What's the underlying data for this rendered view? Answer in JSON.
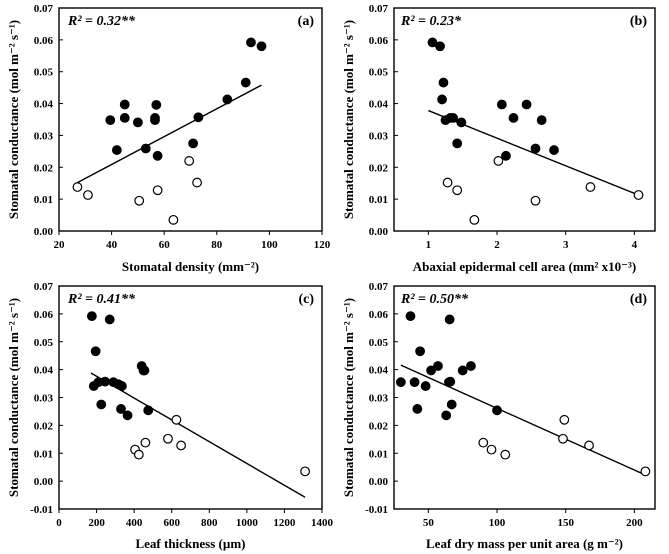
{
  "chart_data": [
    {
      "type": "scatter",
      "panel_label": "(a)",
      "annotation": "R² = 0.32**",
      "xlabel": "Stomatal density (mm⁻²)",
      "ylabel": "Stomatal conductance (mol m⁻² s⁻¹)",
      "xlim": [
        20,
        120
      ],
      "ylim": [
        0.0,
        0.07
      ],
      "xticks": [
        "20",
        "40",
        "60",
        "80",
        "100",
        "120"
      ],
      "yticks": [
        "0.00",
        "0.01",
        "0.02",
        "0.03",
        "0.04",
        "0.05",
        "0.06",
        "0.07"
      ],
      "series": [
        {
          "marker": "filled",
          "points": [
            [
              39.5,
              0.0348
            ],
            [
              45,
              0.0355
            ],
            [
              45,
              0.0397
            ],
            [
              42,
              0.0254
            ],
            [
              50,
              0.0341
            ],
            [
              53,
              0.0259
            ],
            [
              57,
              0.0396
            ],
            [
              56.5,
              0.0355
            ],
            [
              56.5,
              0.0348
            ],
            [
              57.5,
              0.0236
            ],
            [
              71,
              0.0275
            ],
            [
              73,
              0.0357
            ],
            [
              84,
              0.0413
            ],
            [
              91,
              0.0466
            ],
            [
              93,
              0.0592
            ],
            [
              97,
              0.058
            ]
          ]
        },
        {
          "marker": "open",
          "points": [
            [
              27,
              0.0138
            ],
            [
              31,
              0.0113
            ],
            [
              50.5,
              0.0095
            ],
            [
              57.5,
              0.0128
            ],
            [
              63.5,
              0.0035
            ],
            [
              69.5,
              0.022
            ],
            [
              72.5,
              0.0152
            ]
          ]
        }
      ],
      "trend_line": {
        "x": [
          27,
          97
        ],
        "y": [
          0.0152,
          0.0458
        ]
      },
      "colors": {
        "filled": "#000000",
        "open": "#ffffff",
        "line": "#000000"
      }
    },
    {
      "type": "scatter",
      "panel_label": "(b)",
      "annotation": "R² = 0.23*",
      "xlabel": "Abaxial epidermal cell area (mm² x10⁻³)",
      "ylabel": "Stomatal conductance (mol m⁻² s⁻¹)",
      "xlim": [
        0.5,
        4.3
      ],
      "ylim": [
        0.0,
        0.07
      ],
      "xticks": [
        "1",
        "2",
        "3",
        "4"
      ],
      "yticks": [
        "0.00",
        "0.01",
        "0.02",
        "0.03",
        "0.04",
        "0.05",
        "0.06",
        "0.07"
      ],
      "series": [
        {
          "marker": "filled",
          "points": [
            [
              1.06,
              0.0592
            ],
            [
              1.17,
              0.058
            ],
            [
              1.22,
              0.0466
            ],
            [
              1.2,
              0.0413
            ],
            [
              1.25,
              0.0348
            ],
            [
              1.32,
              0.0355
            ],
            [
              1.36,
              0.0355
            ],
            [
              1.42,
              0.0275
            ],
            [
              1.48,
              0.0341
            ],
            [
              2.07,
              0.0397
            ],
            [
              2.13,
              0.0236
            ],
            [
              2.24,
              0.0355
            ],
            [
              2.43,
              0.0397
            ],
            [
              2.56,
              0.0259
            ],
            [
              2.65,
              0.0348
            ],
            [
              2.83,
              0.0254
            ]
          ]
        },
        {
          "marker": "open",
          "points": [
            [
              1.28,
              0.0152
            ],
            [
              1.42,
              0.0128
            ],
            [
              1.67,
              0.0035
            ],
            [
              2.02,
              0.022
            ],
            [
              2.56,
              0.0095
            ],
            [
              3.36,
              0.0138
            ],
            [
              4.06,
              0.0113
            ]
          ]
        }
      ],
      "trend_line": {
        "x": [
          1.0,
          4.06
        ],
        "y": [
          0.0378,
          0.0113
        ]
      },
      "colors": {
        "filled": "#000000",
        "open": "#ffffff",
        "line": "#000000"
      }
    },
    {
      "type": "scatter",
      "panel_label": "(c)",
      "annotation": "R² = 0.41**",
      "xlabel": "Leaf thickness (µm)",
      "ylabel": "Stomatal conductance (mol m⁻² s⁻¹)",
      "xlim": [
        0,
        1400
      ],
      "ylim": [
        -0.01,
        0.07
      ],
      "xticks": [
        "0",
        "200",
        "400",
        "600",
        "800",
        "1000",
        "1200",
        "1400"
      ],
      "yticks": [
        "-0.01",
        "0.00",
        "0.01",
        "0.02",
        "0.03",
        "0.04",
        "0.05",
        "0.06",
        "0.07"
      ],
      "series": [
        {
          "marker": "filled",
          "points": [
            [
              175,
              0.0592
            ],
            [
              270,
              0.058
            ],
            [
              195,
              0.0466
            ],
            [
              210,
              0.0355
            ],
            [
              245,
              0.0357
            ],
            [
              185,
              0.0341
            ],
            [
              225,
              0.0275
            ],
            [
              290,
              0.0355
            ],
            [
              315,
              0.0348
            ],
            [
              335,
              0.0341
            ],
            [
              330,
              0.0259
            ],
            [
              365,
              0.0236
            ],
            [
              440,
              0.0413
            ],
            [
              450,
              0.0397
            ],
            [
              455,
              0.0397
            ],
            [
              475,
              0.0254
            ]
          ]
        },
        {
          "marker": "open",
          "points": [
            [
              405,
              0.0113
            ],
            [
              425,
              0.0095
            ],
            [
              460,
              0.0138
            ],
            [
              580,
              0.0152
            ],
            [
              625,
              0.022
            ],
            [
              650,
              0.0128
            ],
            [
              1310,
              0.0035
            ]
          ]
        }
      ],
      "trend_line": {
        "x": [
          170,
          1310
        ],
        "y": [
          0.0388,
          -0.0058
        ]
      },
      "colors": {
        "filled": "#000000",
        "open": "#ffffff",
        "line": "#000000"
      }
    },
    {
      "type": "scatter",
      "panel_label": "(d)",
      "annotation": "R² = 0.50**",
      "xlabel": "Leaf dry mass per unit area (g m⁻²)",
      "ylabel": "Stomatal conductance (mol m⁻² s⁻¹)",
      "xlim": [
        25,
        215
      ],
      "ylim": [
        -0.01,
        0.07
      ],
      "xticks": [
        "50",
        "100",
        "150",
        "200"
      ],
      "yticks": [
        "-0.01",
        "0.00",
        "0.01",
        "0.02",
        "0.03",
        "0.04",
        "0.05",
        "0.06",
        "0.07"
      ],
      "series": [
        {
          "marker": "filled",
          "points": [
            [
              30,
              0.0355
            ],
            [
              37,
              0.0592
            ],
            [
              40,
              0.0355
            ],
            [
              42,
              0.0259
            ],
            [
              44,
              0.0466
            ],
            [
              48,
              0.0341
            ],
            [
              52,
              0.0397
            ],
            [
              57,
              0.0413
            ],
            [
              63,
              0.0236
            ],
            [
              65,
              0.0355
            ],
            [
              65.5,
              0.058
            ],
            [
              66,
              0.0357
            ],
            [
              67,
              0.0275
            ],
            [
              75,
              0.0397
            ],
            [
              81,
              0.0413
            ],
            [
              100,
              0.0254
            ]
          ]
        },
        {
          "marker": "open",
          "points": [
            [
              90,
              0.0138
            ],
            [
              96,
              0.0113
            ],
            [
              106,
              0.0095
            ],
            [
              148,
              0.0152
            ],
            [
              149,
              0.022
            ],
            [
              167,
              0.0128
            ],
            [
              208,
              0.0035
            ]
          ]
        }
      ],
      "trend_line": {
        "x": [
          30,
          208
        ],
        "y": [
          0.0416,
          0.0022
        ]
      },
      "colors": {
        "filled": "#000000",
        "open": "#ffffff",
        "line": "#000000"
      }
    }
  ]
}
